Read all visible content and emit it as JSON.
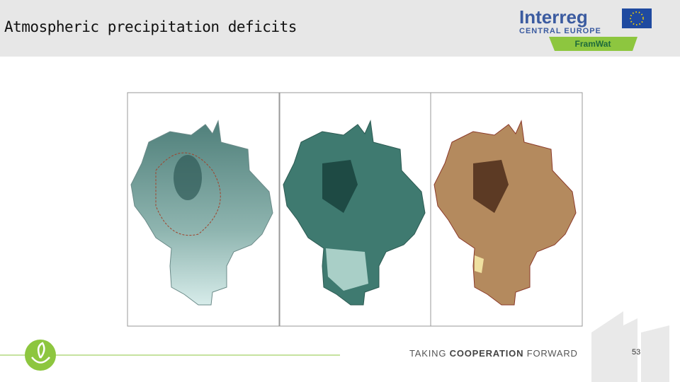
{
  "header": {
    "title": "Atmospheric precipitation deficits"
  },
  "logo": {
    "brand": "Interreg",
    "region": "CENTRAL EUROPE",
    "project": "FramWat"
  },
  "footer": {
    "slogan": [
      "TAKING",
      "COOPERATION",
      "FORWARD"
    ],
    "page_number": 53
  }
}
